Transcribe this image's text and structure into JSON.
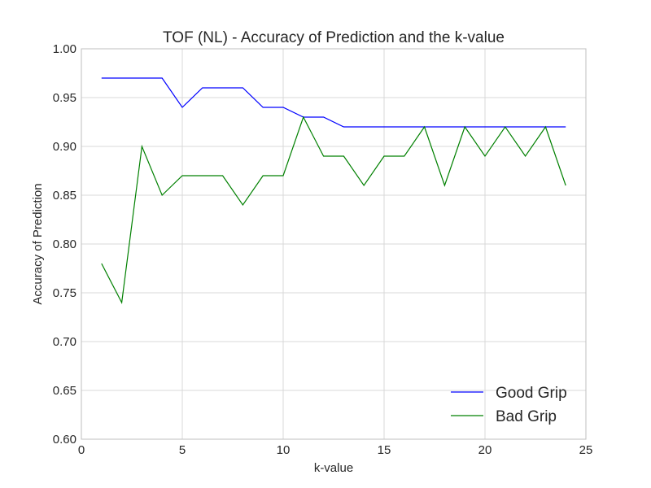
{
  "chart_data": {
    "type": "line",
    "title": "TOF (NL) - Accuracy of Prediction and the k-value",
    "xlabel": "k-value",
    "ylabel": "Accuracy of Prediction",
    "xlim": [
      0,
      25
    ],
    "ylim": [
      0.6,
      1.0
    ],
    "grid": true,
    "legend_position": "lower-right",
    "x_ticks": [
      0,
      5,
      10,
      15,
      20,
      25
    ],
    "y_ticks": [
      0.6,
      0.65,
      0.7,
      0.75,
      0.8,
      0.85,
      0.9,
      0.95,
      1.0
    ],
    "x_tick_labels": [
      "0",
      "5",
      "10",
      "15",
      "20",
      "25"
    ],
    "y_tick_labels": [
      "0.60",
      "0.65",
      "0.70",
      "0.75",
      "0.80",
      "0.85",
      "0.90",
      "0.95",
      "1.00"
    ],
    "x": [
      1,
      2,
      3,
      4,
      5,
      6,
      7,
      8,
      9,
      10,
      11,
      12,
      13,
      14,
      15,
      16,
      17,
      18,
      19,
      20,
      21,
      22,
      23,
      24
    ],
    "series": [
      {
        "name": "Good Grip",
        "color": "#0000ff",
        "values": [
          0.97,
          0.97,
          0.97,
          0.97,
          0.94,
          0.96,
          0.96,
          0.96,
          0.94,
          0.94,
          0.93,
          0.93,
          0.92,
          0.92,
          0.92,
          0.92,
          0.92,
          0.92,
          0.92,
          0.92,
          0.92,
          0.92,
          0.92,
          0.92
        ]
      },
      {
        "name": "Bad Grip",
        "color": "#008000",
        "values": [
          0.78,
          0.74,
          0.9,
          0.85,
          0.87,
          0.87,
          0.87,
          0.84,
          0.87,
          0.87,
          0.93,
          0.89,
          0.89,
          0.86,
          0.89,
          0.89,
          0.92,
          0.86,
          0.92,
          0.89,
          0.92,
          0.89,
          0.92,
          0.86
        ]
      }
    ]
  }
}
